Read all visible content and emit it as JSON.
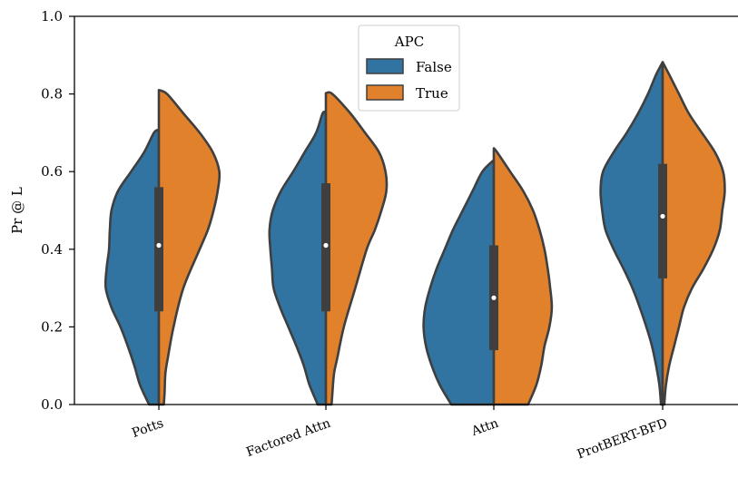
{
  "chart_data": {
    "type": "violin",
    "split": true,
    "title": "",
    "xlabel": "",
    "ylabel": "Pr @ L",
    "ylim": [
      0.0,
      1.0
    ],
    "yticks": [
      "0.0",
      "0.2",
      "0.4",
      "0.6",
      "0.8",
      "1.0"
    ],
    "categories": [
      "Potts",
      "Factored Attn",
      "Attn",
      "ProtBERT-BFD"
    ],
    "legend": {
      "title": "APC",
      "position": "top-center",
      "entries": [
        "False",
        "True"
      ]
    },
    "colors": {
      "False": "#3274a1",
      "True": "#e1812c",
      "outline": "#3f3f3f",
      "box": "#3f3f3f",
      "median": "#ffffff"
    },
    "series": [
      {
        "name": "False",
        "violins": [
          {
            "category": "Potts",
            "profile": [
              [
                0.0,
                0.12
              ],
              [
                0.05,
                0.23
              ],
              [
                0.1,
                0.3
              ],
              [
                0.15,
                0.38
              ],
              [
                0.2,
                0.47
              ],
              [
                0.25,
                0.58
              ],
              [
                0.3,
                0.65
              ],
              [
                0.35,
                0.64
              ],
              [
                0.4,
                0.61
              ],
              [
                0.45,
                0.6
              ],
              [
                0.5,
                0.58
              ],
              [
                0.55,
                0.5
              ],
              [
                0.6,
                0.34
              ],
              [
                0.65,
                0.18
              ],
              [
                0.7,
                0.06
              ],
              [
                0.708,
                0.0
              ]
            ]
          },
          {
            "category": "Factored Attn",
            "profile": [
              [
                0.0,
                0.1
              ],
              [
                0.05,
                0.2
              ],
              [
                0.1,
                0.27
              ],
              [
                0.15,
                0.36
              ],
              [
                0.2,
                0.46
              ],
              [
                0.25,
                0.56
              ],
              [
                0.3,
                0.64
              ],
              [
                0.35,
                0.66
              ],
              [
                0.4,
                0.68
              ],
              [
                0.45,
                0.69
              ],
              [
                0.5,
                0.65
              ],
              [
                0.55,
                0.55
              ],
              [
                0.6,
                0.4
              ],
              [
                0.65,
                0.26
              ],
              [
                0.7,
                0.12
              ],
              [
                0.75,
                0.04
              ],
              [
                0.752,
                0.0
              ]
            ]
          },
          {
            "category": "Attn",
            "profile": [
              [
                0.0,
                0.52
              ],
              [
                0.05,
                0.66
              ],
              [
                0.1,
                0.76
              ],
              [
                0.15,
                0.83
              ],
              [
                0.2,
                0.86
              ],
              [
                0.25,
                0.84
              ],
              [
                0.3,
                0.78
              ],
              [
                0.35,
                0.7
              ],
              [
                0.4,
                0.6
              ],
              [
                0.45,
                0.5
              ],
              [
                0.5,
                0.38
              ],
              [
                0.55,
                0.26
              ],
              [
                0.6,
                0.14
              ],
              [
                0.63,
                0.0
              ]
            ]
          },
          {
            "category": "ProtBERT-BFD",
            "profile": [
              [
                0.0,
                0.02
              ],
              [
                0.05,
                0.04
              ],
              [
                0.1,
                0.08
              ],
              [
                0.15,
                0.13
              ],
              [
                0.2,
                0.2
              ],
              [
                0.25,
                0.28
              ],
              [
                0.3,
                0.37
              ],
              [
                0.35,
                0.48
              ],
              [
                0.4,
                0.6
              ],
              [
                0.45,
                0.7
              ],
              [
                0.5,
                0.74
              ],
              [
                0.55,
                0.76
              ],
              [
                0.6,
                0.73
              ],
              [
                0.65,
                0.6
              ],
              [
                0.7,
                0.44
              ],
              [
                0.75,
                0.3
              ],
              [
                0.8,
                0.18
              ],
              [
                0.85,
                0.08
              ],
              [
                0.882,
                0.0
              ]
            ]
          }
        ],
        "medians": [],
        "quartiles": []
      },
      {
        "name": "True",
        "violins": [
          {
            "category": "Potts",
            "profile": [
              [
                0.0,
                0.06
              ],
              [
                0.03,
                0.07
              ],
              [
                0.08,
                0.08
              ],
              [
                0.12,
                0.11
              ],
              [
                0.2,
                0.18
              ],
              [
                0.3,
                0.3
              ],
              [
                0.4,
                0.5
              ],
              [
                0.45,
                0.6
              ],
              [
                0.5,
                0.67
              ],
              [
                0.55,
                0.72
              ],
              [
                0.6,
                0.74
              ],
              [
                0.65,
                0.66
              ],
              [
                0.7,
                0.5
              ],
              [
                0.75,
                0.3
              ],
              [
                0.8,
                0.1
              ],
              [
                0.81,
                0.0
              ]
            ]
          },
          {
            "category": "Factored Attn",
            "profile": [
              [
                0.0,
                0.07
              ],
              [
                0.03,
                0.08
              ],
              [
                0.08,
                0.1
              ],
              [
                0.12,
                0.14
              ],
              [
                0.2,
                0.22
              ],
              [
                0.3,
                0.36
              ],
              [
                0.4,
                0.5
              ],
              [
                0.45,
                0.6
              ],
              [
                0.5,
                0.68
              ],
              [
                0.55,
                0.74
              ],
              [
                0.6,
                0.73
              ],
              [
                0.65,
                0.65
              ],
              [
                0.7,
                0.48
              ],
              [
                0.75,
                0.3
              ],
              [
                0.8,
                0.08
              ],
              [
                0.802,
                0.0
              ]
            ]
          },
          {
            "category": "Attn",
            "profile": [
              [
                0.0,
                0.42
              ],
              [
                0.05,
                0.52
              ],
              [
                0.1,
                0.58
              ],
              [
                0.15,
                0.62
              ],
              [
                0.2,
                0.68
              ],
              [
                0.25,
                0.71
              ],
              [
                0.3,
                0.69
              ],
              [
                0.35,
                0.66
              ],
              [
                0.4,
                0.62
              ],
              [
                0.45,
                0.56
              ],
              [
                0.5,
                0.48
              ],
              [
                0.55,
                0.36
              ],
              [
                0.6,
                0.2
              ],
              [
                0.65,
                0.04
              ],
              [
                0.66,
                0.0
              ]
            ]
          },
          {
            "category": "ProtBERT-BFD",
            "profile": [
              [
                0.0,
                0.02
              ],
              [
                0.05,
                0.04
              ],
              [
                0.1,
                0.08
              ],
              [
                0.15,
                0.14
              ],
              [
                0.2,
                0.2
              ],
              [
                0.25,
                0.26
              ],
              [
                0.3,
                0.36
              ],
              [
                0.35,
                0.5
              ],
              [
                0.4,
                0.62
              ],
              [
                0.45,
                0.7
              ],
              [
                0.5,
                0.73
              ],
              [
                0.55,
                0.76
              ],
              [
                0.6,
                0.74
              ],
              [
                0.65,
                0.64
              ],
              [
                0.7,
                0.48
              ],
              [
                0.75,
                0.32
              ],
              [
                0.8,
                0.2
              ],
              [
                0.85,
                0.08
              ],
              [
                0.882,
                0.0
              ]
            ]
          }
        ]
      }
    ],
    "box": [
      {
        "category": "Potts",
        "q1": 0.24,
        "median": 0.41,
        "q3": 0.56
      },
      {
        "category": "Factored Attn",
        "q1": 0.24,
        "median": 0.41,
        "q3": 0.57
      },
      {
        "category": "Attn",
        "q1": 0.14,
        "median": 0.275,
        "q3": 0.41
      },
      {
        "category": "ProtBERT-BFD",
        "q1": 0.325,
        "median": 0.485,
        "q3": 0.62
      }
    ],
    "grid": false
  }
}
